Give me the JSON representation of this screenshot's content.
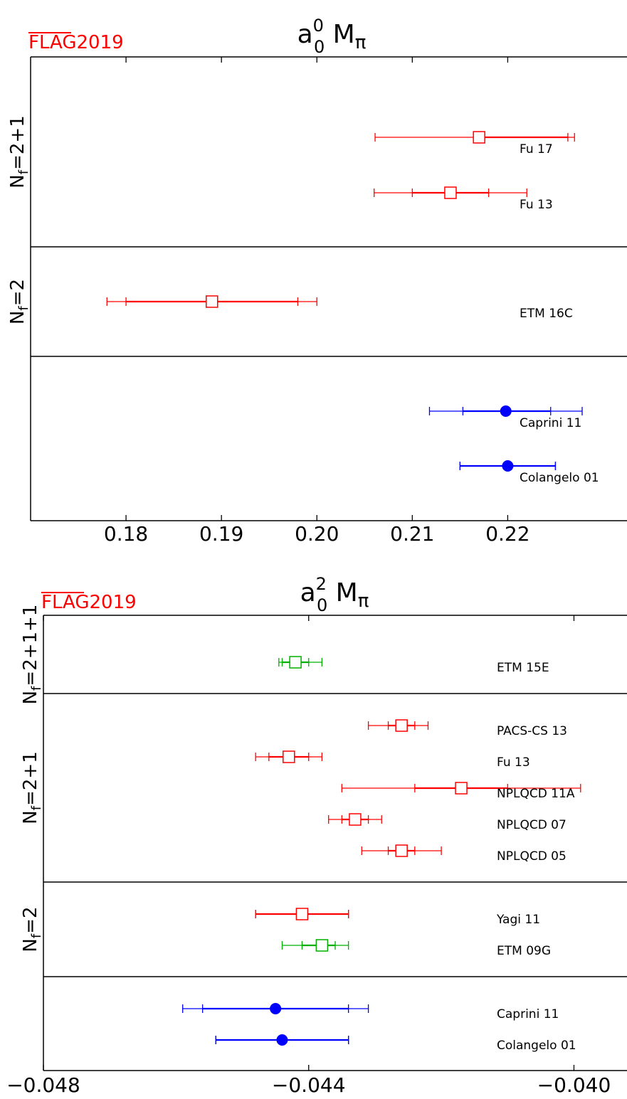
{
  "colors": {
    "red": "#ff0000",
    "blue": "#0000ff",
    "green": "#00b000",
    "flag": "#ff0000"
  },
  "chart_data": [
    {
      "type": "scatter",
      "title_base": "a",
      "title_sup": "0",
      "title_sub": "0",
      "title_tail": "M",
      "title_tail_sub": "π",
      "logo_text": "FLAG2019",
      "xlim": [
        0.17,
        0.2325
      ],
      "xticks": [
        0.18,
        0.19,
        0.2,
        0.21,
        0.22
      ],
      "xtick_labels": [
        "0.18",
        "0.19",
        "0.20",
        "0.21",
        "0.22"
      ],
      "groups": [
        {
          "label_main": "N",
          "label_sub": "f",
          "label_rest": "=2+1",
          "rows": 2
        },
        {
          "label_main": "N",
          "label_sub": "f",
          "label_rest": "=2",
          "rows": 1
        },
        {
          "label_main": "",
          "label_sub": "",
          "label_rest": "",
          "rows": 2
        }
      ],
      "series": [
        {
          "name": "Fu 17",
          "value": 0.217,
          "stat": [
            0.2165,
            0.2263
          ],
          "total": [
            0.2061,
            0.227
          ],
          "color": "red",
          "marker": "open-square"
        },
        {
          "name": "Fu 13",
          "value": 0.214,
          "stat": [
            0.21,
            0.218
          ],
          "total": [
            0.206,
            0.222
          ],
          "color": "red",
          "marker": "open-square"
        },
        {
          "name": "ETM 16C",
          "value": 0.189,
          "stat": [
            0.18,
            0.198
          ],
          "total": [
            0.178,
            0.2
          ],
          "color": "red",
          "marker": "open-square"
        },
        {
          "name": "Caprini 11",
          "value": 0.2198,
          "stat": [
            0.2153,
            0.2245
          ],
          "total": [
            0.2118,
            0.2278
          ],
          "color": "blue",
          "marker": "filled-circle"
        },
        {
          "name": "Colangelo 01",
          "value": 0.22,
          "stat": [
            0.215,
            0.225
          ],
          "total": [
            0.215,
            0.225
          ],
          "color": "blue",
          "marker": "filled-circle"
        }
      ]
    },
    {
      "type": "scatter",
      "title_base": "a",
      "title_sup": "2",
      "title_sub": "0",
      "title_tail": "M",
      "title_tail_sub": "π",
      "logo_text": "FLAG2019",
      "xlim": [
        -0.048,
        -0.0392
      ],
      "xticks": [
        -0.048,
        -0.044,
        -0.04
      ],
      "xtick_labels": [
        "−0.048",
        "−0.044",
        "−0.040"
      ],
      "groups": [
        {
          "label_main": "N",
          "label_sub": "f",
          "label_rest": "=2+1+1",
          "rows": 1
        },
        {
          "label_main": "N",
          "label_sub": "f",
          "label_rest": "=2+1",
          "rows": 5
        },
        {
          "label_main": "N",
          "label_sub": "f",
          "label_rest": "=2",
          "rows": 2
        },
        {
          "label_main": "",
          "label_sub": "",
          "label_rest": "",
          "rows": 2
        }
      ],
      "series": [
        {
          "name": "ETM 15E",
          "value": -0.0442,
          "stat": [
            -0.0444,
            -0.044
          ],
          "total": [
            -0.04445,
            -0.0438
          ],
          "color": "green",
          "marker": "open-square"
        },
        {
          "name": "PACS-CS 13",
          "value": -0.0426,
          "stat": [
            -0.0428,
            -0.0424
          ],
          "total": [
            -0.0431,
            -0.0422
          ],
          "color": "red",
          "marker": "open-square"
        },
        {
          "name": "Fu 13",
          "value": -0.0443,
          "stat": [
            -0.0446,
            -0.044
          ],
          "total": [
            -0.0448,
            -0.0438
          ],
          "color": "red",
          "marker": "open-square"
        },
        {
          "name": "NPLQCD 11A",
          "value": -0.0417,
          "stat": [
            -0.0424,
            -0.041
          ],
          "total": [
            -0.0435,
            -0.0399
          ],
          "color": "red",
          "marker": "open-square"
        },
        {
          "name": "NPLQCD 07",
          "value": -0.0433,
          "stat": [
            -0.0435,
            -0.0431
          ],
          "total": [
            -0.0437,
            -0.0429
          ],
          "color": "red",
          "marker": "open-square"
        },
        {
          "name": "NPLQCD 05",
          "value": -0.0426,
          "stat": [
            -0.0428,
            -0.0424
          ],
          "total": [
            -0.0432,
            -0.042
          ],
          "color": "red",
          "marker": "open-square"
        },
        {
          "name": "Yagi 11",
          "value": -0.0441,
          "stat": [
            -0.0448,
            -0.0434
          ],
          "total": [
            -0.0448,
            -0.0434
          ],
          "color": "red",
          "marker": "open-square"
        },
        {
          "name": "ETM 09G",
          "value": -0.0438,
          "stat": [
            -0.0441,
            -0.0436
          ],
          "total": [
            -0.0444,
            -0.0434
          ],
          "color": "green",
          "marker": "open-square"
        },
        {
          "name": "Caprini 11",
          "value": -0.0445,
          "stat": [
            -0.0456,
            -0.0434
          ],
          "total": [
            -0.0459,
            -0.0431
          ],
          "color": "blue",
          "marker": "filled-circle"
        },
        {
          "name": "Colangelo 01",
          "value": -0.0444,
          "stat": [
            -0.0454,
            -0.0434
          ],
          "total": [
            -0.0454,
            -0.0434
          ],
          "color": "blue",
          "marker": "filled-circle"
        }
      ]
    }
  ]
}
